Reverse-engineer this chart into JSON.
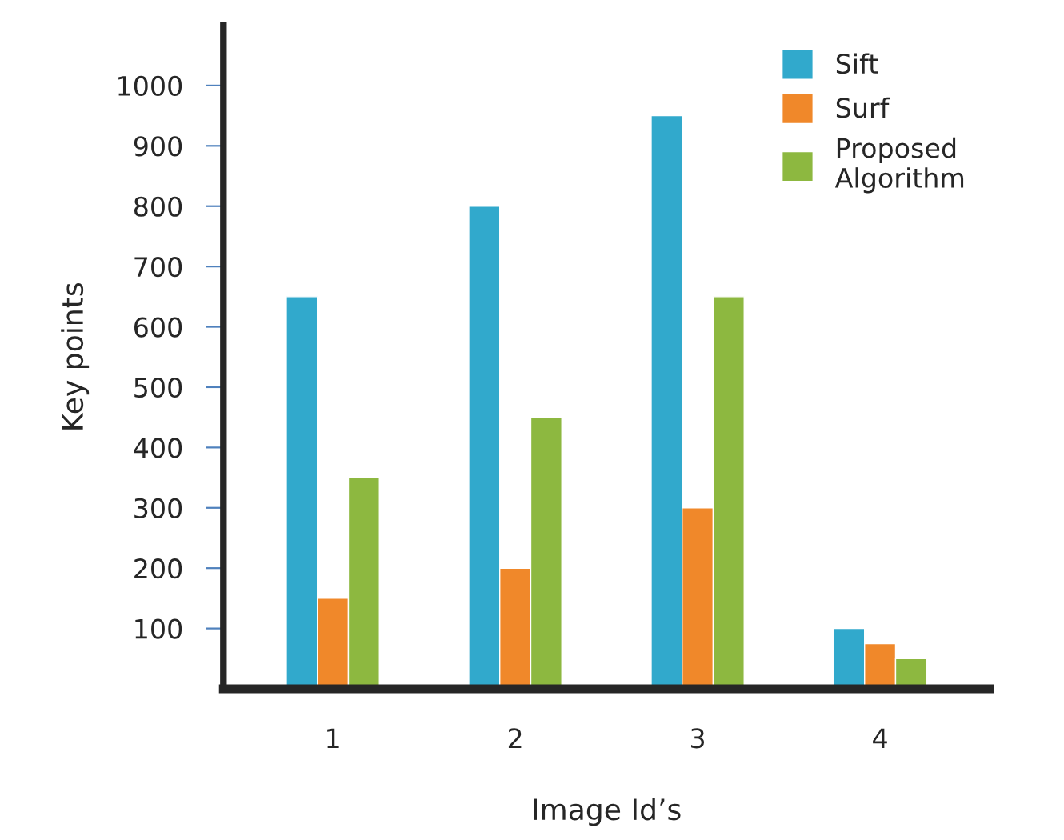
{
  "chart_data": {
    "type": "bar",
    "xlabel": "Image Id’s",
    "ylabel": "Key points",
    "categories": [
      "1",
      "2",
      "3",
      "4"
    ],
    "series": [
      {
        "name": "Sift",
        "color": "#31a9cc",
        "values": [
          650,
          800,
          950,
          100
        ]
      },
      {
        "name": "Surf",
        "color": "#f0882a",
        "values": [
          150,
          200,
          300,
          75
        ]
      },
      {
        "name": "Proposed\nAlgorithm",
        "color": "#8db840",
        "values": [
          350,
          450,
          650,
          50
        ]
      }
    ],
    "ylim": [
      0,
      1100
    ],
    "yticks": [
      100,
      200,
      300,
      400,
      500,
      600,
      700,
      800,
      900,
      1000
    ],
    "grid": false,
    "legend": "top right"
  }
}
